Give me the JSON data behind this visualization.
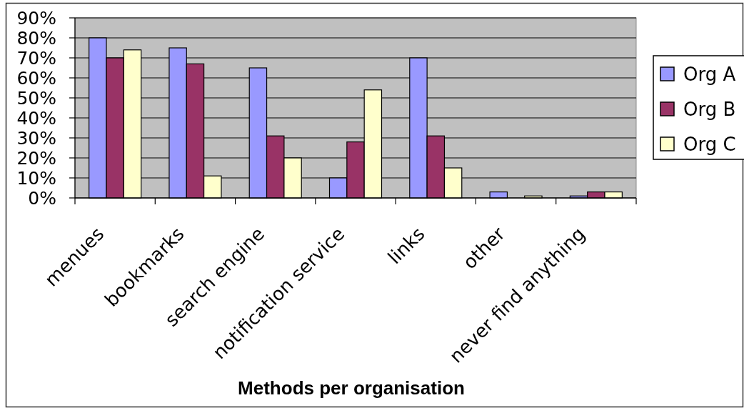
{
  "chart_data": {
    "type": "bar",
    "xlabel": "Methods per organisation",
    "categories": [
      "menues",
      "bookmarks",
      "search engine",
      "notification service",
      "links",
      "other",
      "never find anything"
    ],
    "series": [
      {
        "name": "Org A",
        "color": "#9999ff",
        "values": [
          80,
          75,
          65,
          10,
          70,
          3,
          1
        ]
      },
      {
        "name": "Org B",
        "color": "#993366",
        "values": [
          70,
          67,
          31,
          28,
          31,
          0,
          3
        ]
      },
      {
        "name": "Org C",
        "color": "#ffffcc",
        "values": [
          74,
          11,
          20,
          54,
          15,
          1,
          3
        ]
      }
    ],
    "ylim": [
      0,
      90
    ],
    "yticks": [
      {
        "value": 0,
        "label": "0%"
      },
      {
        "value": 10,
        "label": "10%"
      },
      {
        "value": 20,
        "label": "20%"
      },
      {
        "value": 30,
        "label": "30%"
      },
      {
        "value": 40,
        "label": "40%"
      },
      {
        "value": 50,
        "label": "50%"
      },
      {
        "value": 60,
        "label": "60%"
      },
      {
        "value": 70,
        "label": "70%"
      },
      {
        "value": 80,
        "label": "80%"
      },
      {
        "value": 90,
        "label": "90%"
      }
    ],
    "grid": "y",
    "legend": "right"
  }
}
